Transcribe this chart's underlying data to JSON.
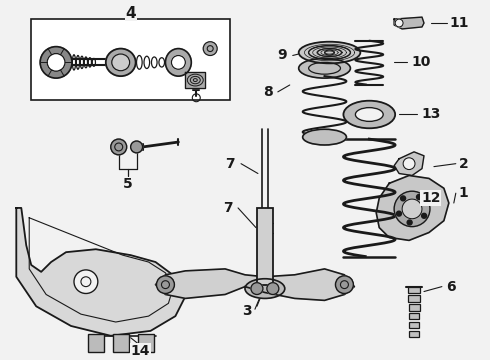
{
  "bg_color": "#f2f2f2",
  "line_color": "#1a1a1a",
  "fig_width": 4.9,
  "fig_height": 3.6,
  "dpi": 100
}
